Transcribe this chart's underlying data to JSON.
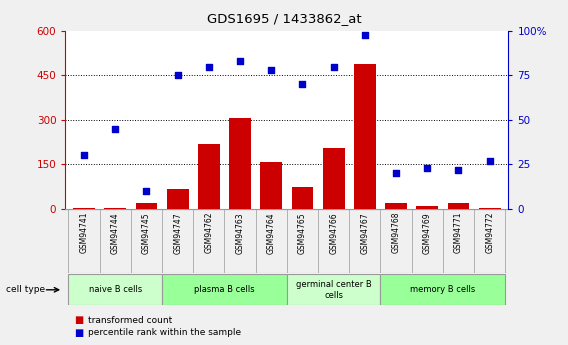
{
  "title": "GDS1695 / 1433862_at",
  "samples": [
    "GSM94741",
    "GSM94744",
    "GSM94745",
    "GSM94747",
    "GSM94762",
    "GSM94763",
    "GSM94764",
    "GSM94765",
    "GSM94766",
    "GSM94767",
    "GSM94768",
    "GSM94769",
    "GSM94771",
    "GSM94772"
  ],
  "transformed_count": [
    3,
    3,
    18,
    68,
    218,
    305,
    158,
    75,
    205,
    488,
    18,
    8,
    18,
    3
  ],
  "percentile_rank": [
    30,
    45,
    10,
    75,
    80,
    83,
    78,
    70,
    80,
    98,
    20,
    23,
    22,
    27
  ],
  "ylim_left": [
    0,
    600
  ],
  "ylim_right": [
    0,
    100
  ],
  "yticks_left": [
    0,
    150,
    300,
    450,
    600
  ],
  "yticks_right": [
    0,
    25,
    50,
    75,
    100
  ],
  "ylabel_left_color": "#cc0000",
  "ylabel_right_color": "#0000cc",
  "bar_color": "#cc0000",
  "dot_color": "#0000cc",
  "cell_groups": [
    {
      "label": "naive B cells",
      "start": 0,
      "end": 3,
      "color": "#ccffcc"
    },
    {
      "label": "plasma B cells",
      "start": 3,
      "end": 7,
      "color": "#99ff99"
    },
    {
      "label": "germinal center B\ncells",
      "start": 7,
      "end": 10,
      "color": "#ccffcc"
    },
    {
      "label": "memory B cells",
      "start": 10,
      "end": 14,
      "color": "#99ff99"
    }
  ],
  "legend_bar_label": "transformed count",
  "legend_dot_label": "percentile rank within the sample",
  "cell_type_label": "cell type",
  "sample_bg_color": "#d8d8d8",
  "plot_bg_color": "#ffffff",
  "fig_bg_color": "#f0f0f0",
  "grid_color": "#000000",
  "border_color": "#999999"
}
